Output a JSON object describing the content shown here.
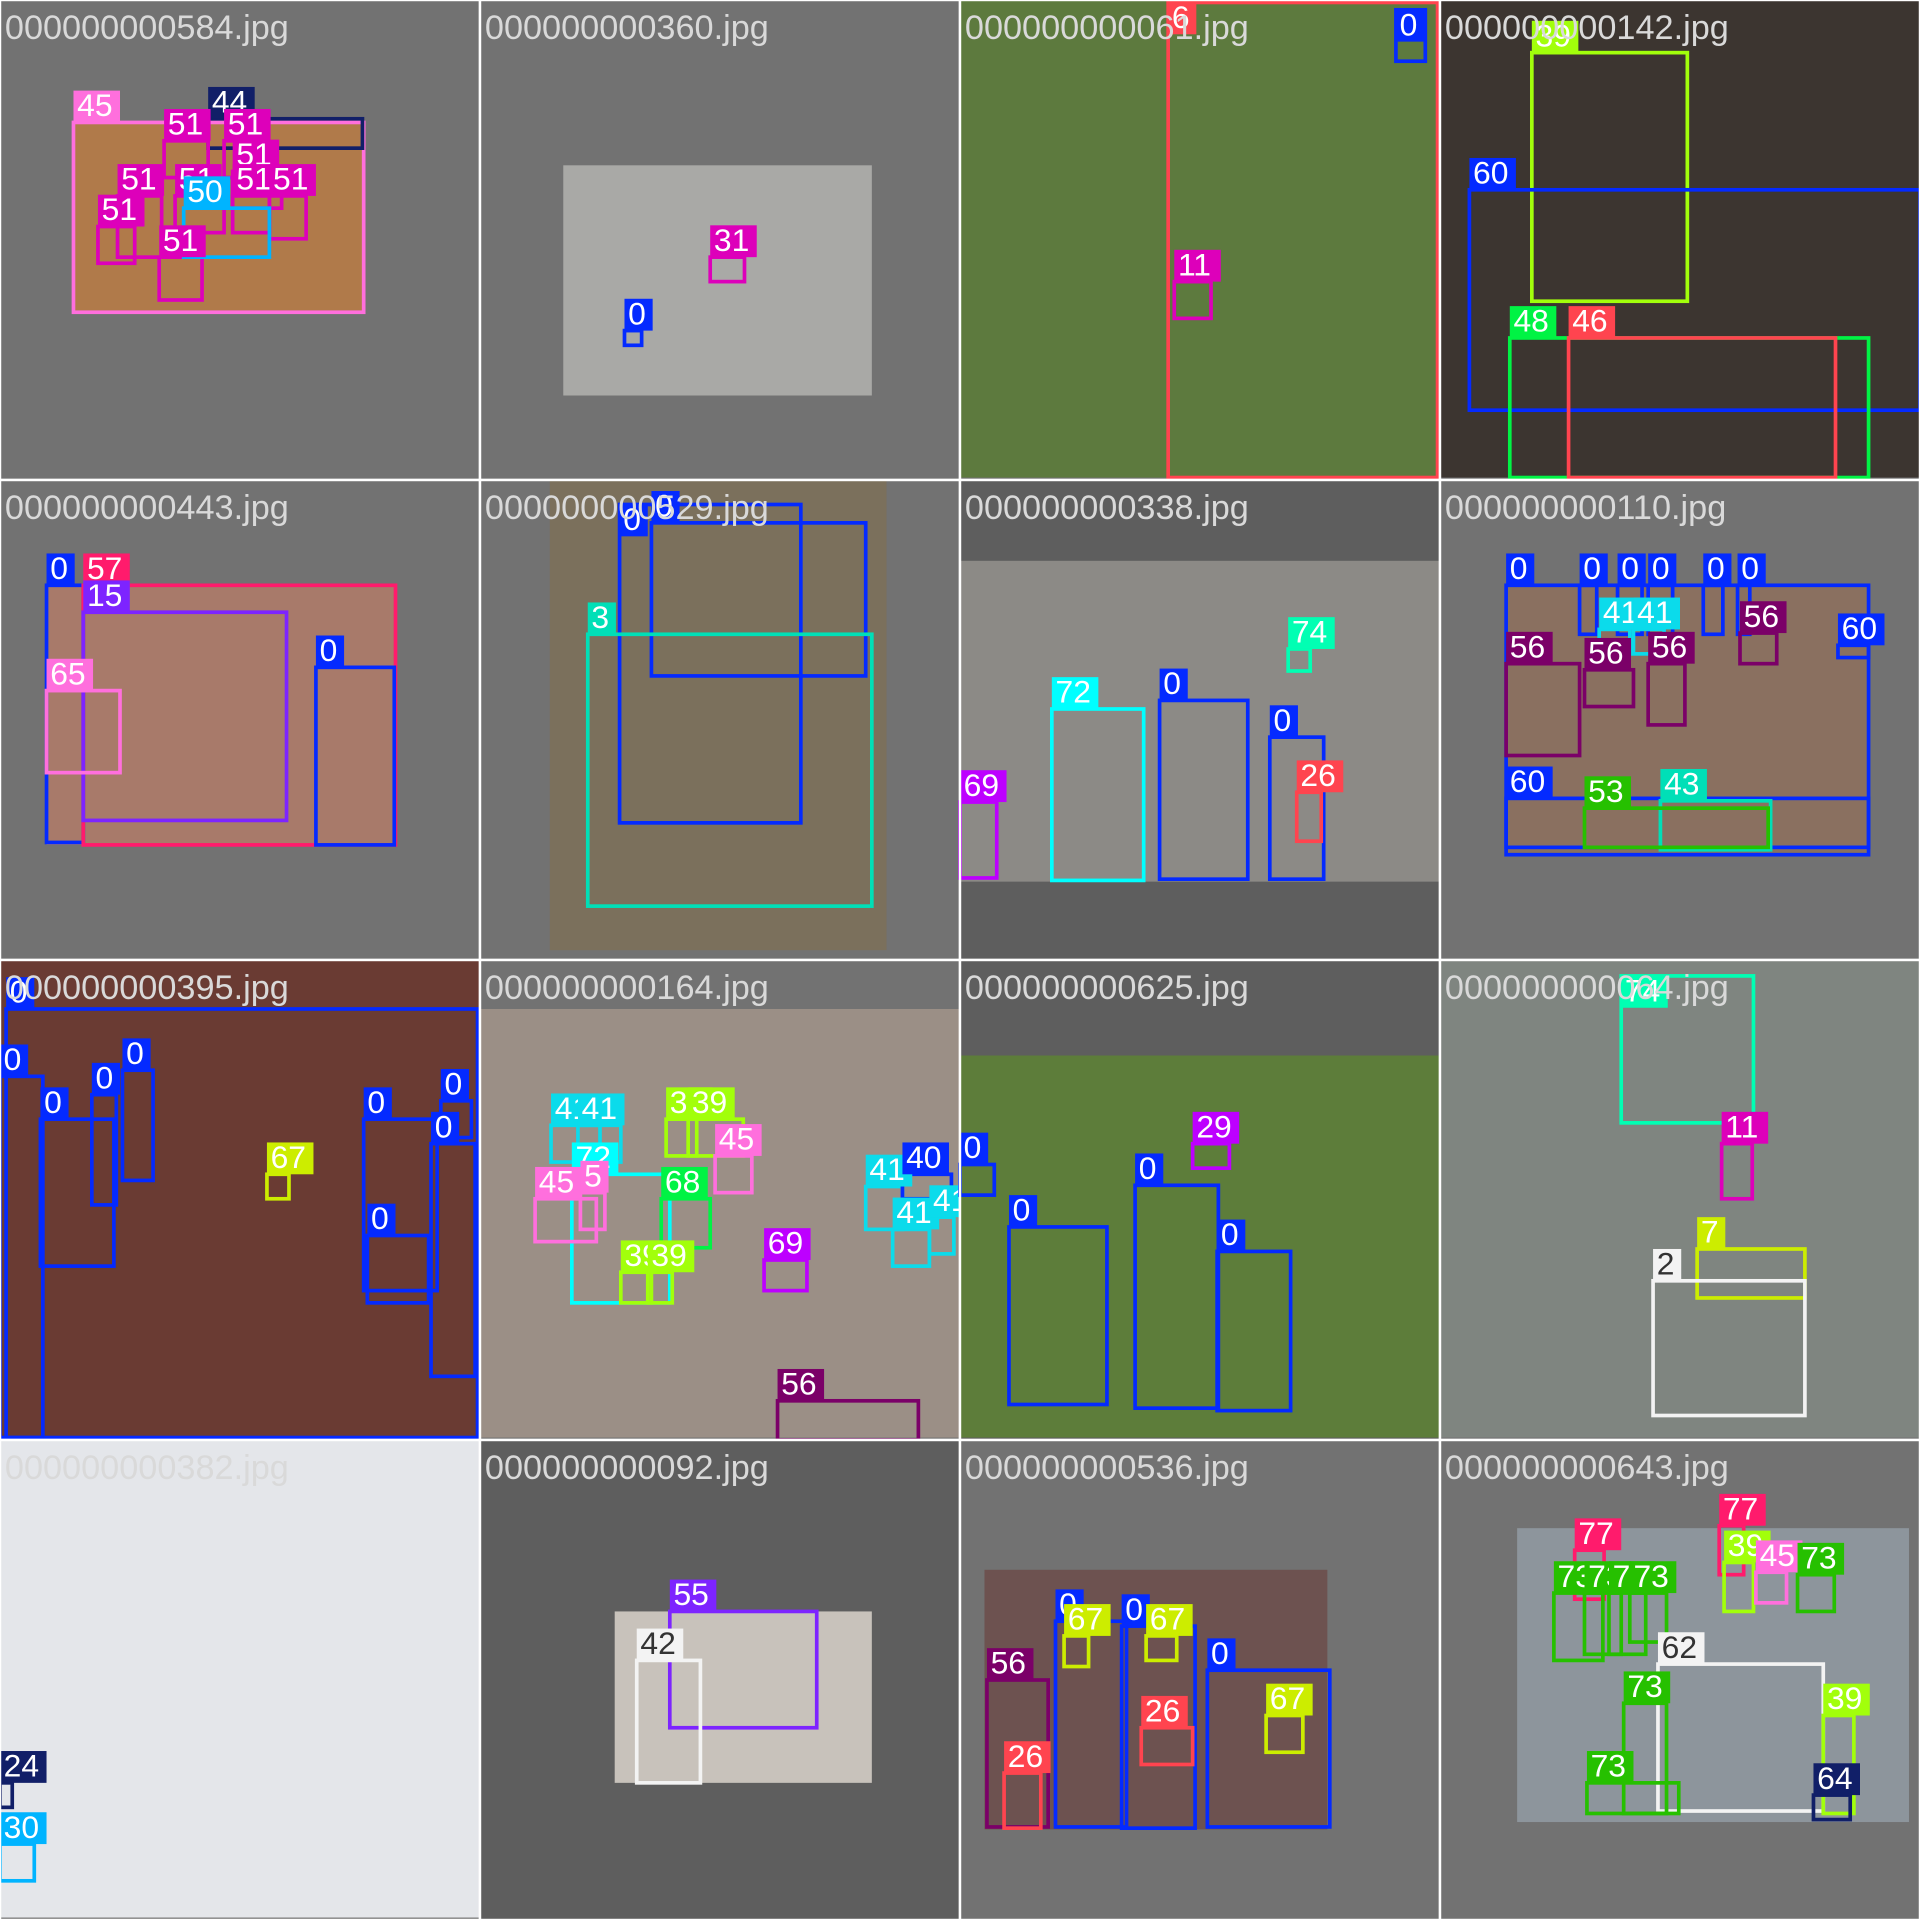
{
  "tiles": [
    {
      "filename": "000000000584.jpg",
      "labels": [
        "45",
        "44",
        "51",
        "51",
        "51",
        "51",
        "51",
        "51",
        "51",
        "51",
        "51",
        "50"
      ]
    },
    {
      "filename": "000000000360.jpg",
      "labels": [
        "31",
        "0"
      ]
    },
    {
      "filename": "000000000061.jpg",
      "labels": [
        "6",
        "0",
        "11"
      ]
    },
    {
      "filename": "000000000142.jpg",
      "labels": [
        "39",
        "60",
        "48",
        "46"
      ]
    },
    {
      "filename": "000000000443.jpg",
      "labels": [
        "0",
        "57",
        "15",
        "65",
        "0"
      ]
    },
    {
      "filename": "000000000529.jpg",
      "labels": [
        "0",
        "0",
        "3"
      ]
    },
    {
      "filename": "000000000338.jpg",
      "labels": [
        "74",
        "72",
        "0",
        "0",
        "26",
        "69"
      ]
    },
    {
      "filename": "000000000110.jpg",
      "labels": [
        "0",
        "0",
        "0",
        "0",
        "0",
        "0",
        "41",
        "41",
        "56",
        "56",
        "56",
        "56",
        "60",
        "60",
        "43",
        "53"
      ]
    },
    {
      "filename": "000000000395.jpg",
      "labels": [
        "0",
        "0",
        "0",
        "0",
        "0",
        "67",
        "0",
        "0",
        "0",
        "0"
      ]
    },
    {
      "filename": "000000000164.jpg",
      "labels": [
        "72",
        "41",
        "41",
        "39",
        "39",
        "45",
        "45",
        "5",
        "68",
        "39",
        "39",
        "69",
        "41",
        "41",
        "41",
        "40",
        "56"
      ]
    },
    {
      "filename": "000000000625.jpg",
      "labels": [
        "29",
        "0",
        "0",
        "0",
        "0"
      ]
    },
    {
      "filename": "000000000064.jpg",
      "labels": [
        "74",
        "11",
        "7",
        "2"
      ]
    },
    {
      "filename": "000000000382.jpg",
      "labels": [
        "24",
        "30"
      ]
    },
    {
      "filename": "000000000092.jpg",
      "labels": [
        "55",
        "42"
      ]
    },
    {
      "filename": "000000000536.jpg",
      "labels": [
        "56",
        "0",
        "67",
        "0",
        "67",
        "26",
        "0",
        "26",
        "67"
      ]
    },
    {
      "filename": "000000000643.jpg",
      "labels": [
        "77",
        "77",
        "39",
        "45",
        "73",
        "73",
        "73",
        "73",
        "73",
        "62",
        "73",
        "73",
        "39",
        "64"
      ]
    }
  ]
}
